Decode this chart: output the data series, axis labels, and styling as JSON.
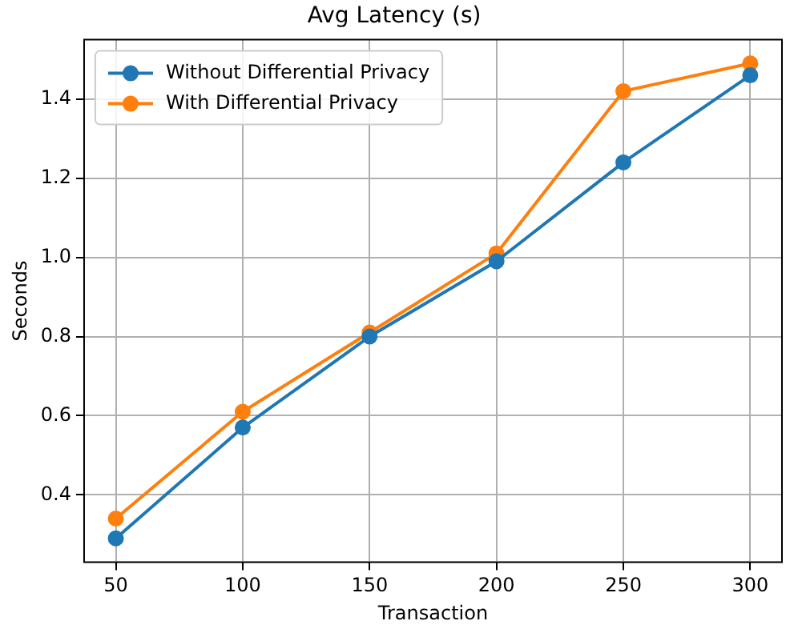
{
  "chart_data": {
    "type": "line",
    "title": "Avg Latency (s)",
    "xlabel": "Transaction",
    "ylabel": "Seconds",
    "x": [
      50,
      100,
      150,
      200,
      250,
      300
    ],
    "series": [
      {
        "name": "Without Differential Privacy",
        "color": "#1f77b4",
        "values": [
          0.29,
          0.57,
          0.8,
          0.99,
          1.24,
          1.46
        ]
      },
      {
        "name": "With Differential Privacy",
        "color": "#ff7f0e",
        "values": [
          0.34,
          0.61,
          0.81,
          1.01,
          1.42,
          1.49
        ]
      }
    ],
    "xlim": [
      37.5,
      312.5
    ],
    "xticks": [
      50,
      100,
      150,
      200,
      250,
      300
    ],
    "ylim": [
      0.23,
      1.55
    ],
    "yticks": [
      0.4,
      0.6,
      0.8,
      {
        "value": 1,
        "label": "1.0"
      },
      1.2,
      1.4
    ],
    "grid": true,
    "legend": "top left",
    "marker": "circle",
    "line_style": "solid"
  }
}
